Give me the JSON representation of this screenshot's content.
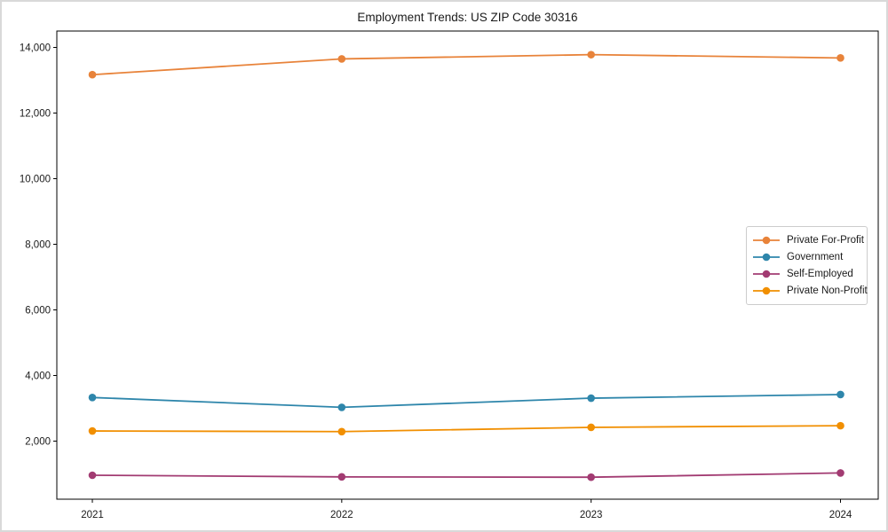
{
  "chart_data": {
    "type": "line",
    "title": "Employment Trends: US ZIP Code 30316",
    "x": [
      2021,
      2022,
      2023,
      2024
    ],
    "series": [
      {
        "name": "Private For-Profit",
        "color": "#E8833A",
        "values": [
          13170,
          13650,
          13780,
          13680
        ]
      },
      {
        "name": "Government",
        "color": "#2E86AB",
        "values": [
          3330,
          3030,
          3310,
          3420
        ]
      },
      {
        "name": "Self-Employed",
        "color": "#A23B72",
        "values": [
          960,
          910,
          900,
          1030
        ]
      },
      {
        "name": "Private Non-Profit",
        "color": "#F18F01",
        "values": [
          2310,
          2290,
          2420,
          2470
        ]
      }
    ],
    "xticks": [
      "2021",
      "2022",
      "2023",
      "2024"
    ],
    "yticks": [
      2000,
      4000,
      6000,
      8000,
      10000,
      12000,
      14000
    ],
    "ytick_labels": [
      "2,000",
      "4,000",
      "6,000",
      "8,000",
      "10,000",
      "12,000",
      "14,000"
    ],
    "ylim": [
      230,
      14500
    ],
    "grid": false,
    "legend_position": "center-right",
    "axis_color": "#000000",
    "tick_label_color": "#1a1a1a",
    "marker": "circle",
    "line_width": 1.8,
    "marker_radius": 4.3
  }
}
